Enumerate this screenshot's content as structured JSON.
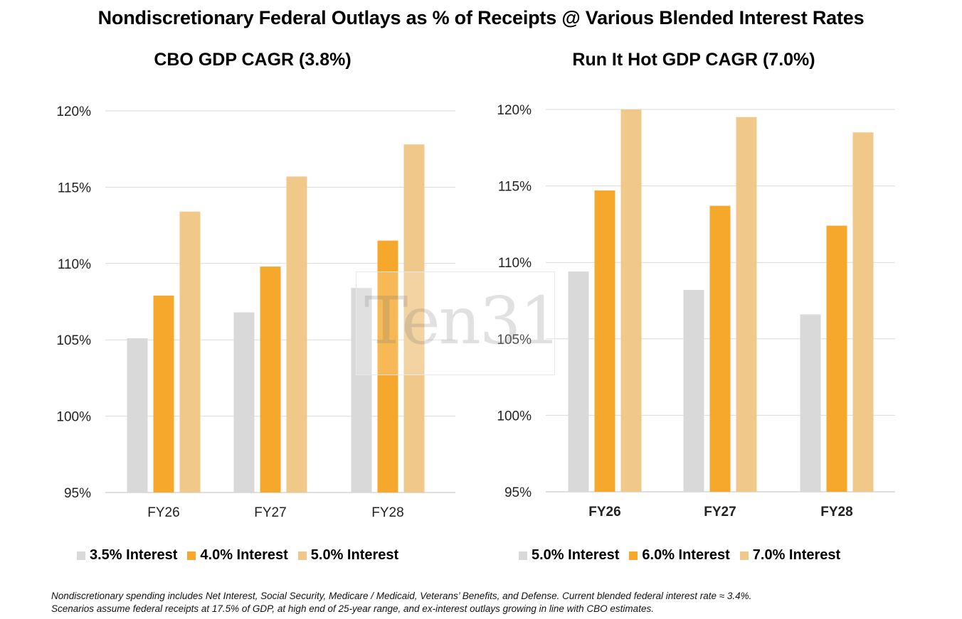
{
  "title": "Nondiscretionary Federal Outlays as % of Receipts @ Various Blended Interest Rates",
  "watermark": "Ten31",
  "footnote": {
    "line1": "Nondiscretionary spending includes Net Interest, Social Security, Medicare / Medicaid, Veterans’ Benefits, and Defense. Current blended federal interest rate ≈ 3.4%.",
    "line2": "Scenarios assume federal receipts at 17.5% of GDP, at high end of 25-year range, and ex-interest outlays growing in line with CBO estimates."
  },
  "colors": {
    "grey": "#d9d9d9",
    "orange": "#f5a82b",
    "tan": "#f0c98a",
    "grid": "#d9d9d9"
  },
  "chart_data": [
    {
      "type": "bar",
      "title": "CBO GDP CAGR (3.8%)",
      "categories": [
        "FY26",
        "FY27",
        "FY28"
      ],
      "yticks": [
        "95%",
        "100%",
        "105%",
        "110%",
        "115%",
        "120%"
      ],
      "ylim": [
        95,
        120
      ],
      "xlabel": "",
      "ylabel": "",
      "series": [
        {
          "name": "3.5% Interest",
          "color": "#d9d9d9",
          "values": [
            105.1,
            106.8,
            108.4
          ]
        },
        {
          "name": "4.0% Interest",
          "color": "#f5a82b",
          "values": [
            107.9,
            109.8,
            111.5
          ]
        },
        {
          "name": "5.0% Interest",
          "color": "#f0c98a",
          "values": [
            113.4,
            115.7,
            117.8
          ]
        }
      ]
    },
    {
      "type": "bar",
      "title": "Run It Hot GDP CAGR (7.0%)",
      "categories": [
        "FY26",
        "FY27",
        "FY28"
      ],
      "yticks": [
        "95%",
        "100%",
        "105%",
        "110%",
        "115%",
        "120%"
      ],
      "ylim": [
        95,
        120
      ],
      "xlabel": "",
      "ylabel": "",
      "series": [
        {
          "name": "5.0% Interest",
          "color": "#d9d9d9",
          "values": [
            109.4,
            108.2,
            106.6
          ]
        },
        {
          "name": "6.0% Interest",
          "color": "#f5a82b",
          "values": [
            114.7,
            113.7,
            112.4
          ]
        },
        {
          "name": "7.0% Interest",
          "color": "#f0c98a",
          "values": [
            120.0,
            119.5,
            118.5
          ]
        }
      ]
    }
  ]
}
